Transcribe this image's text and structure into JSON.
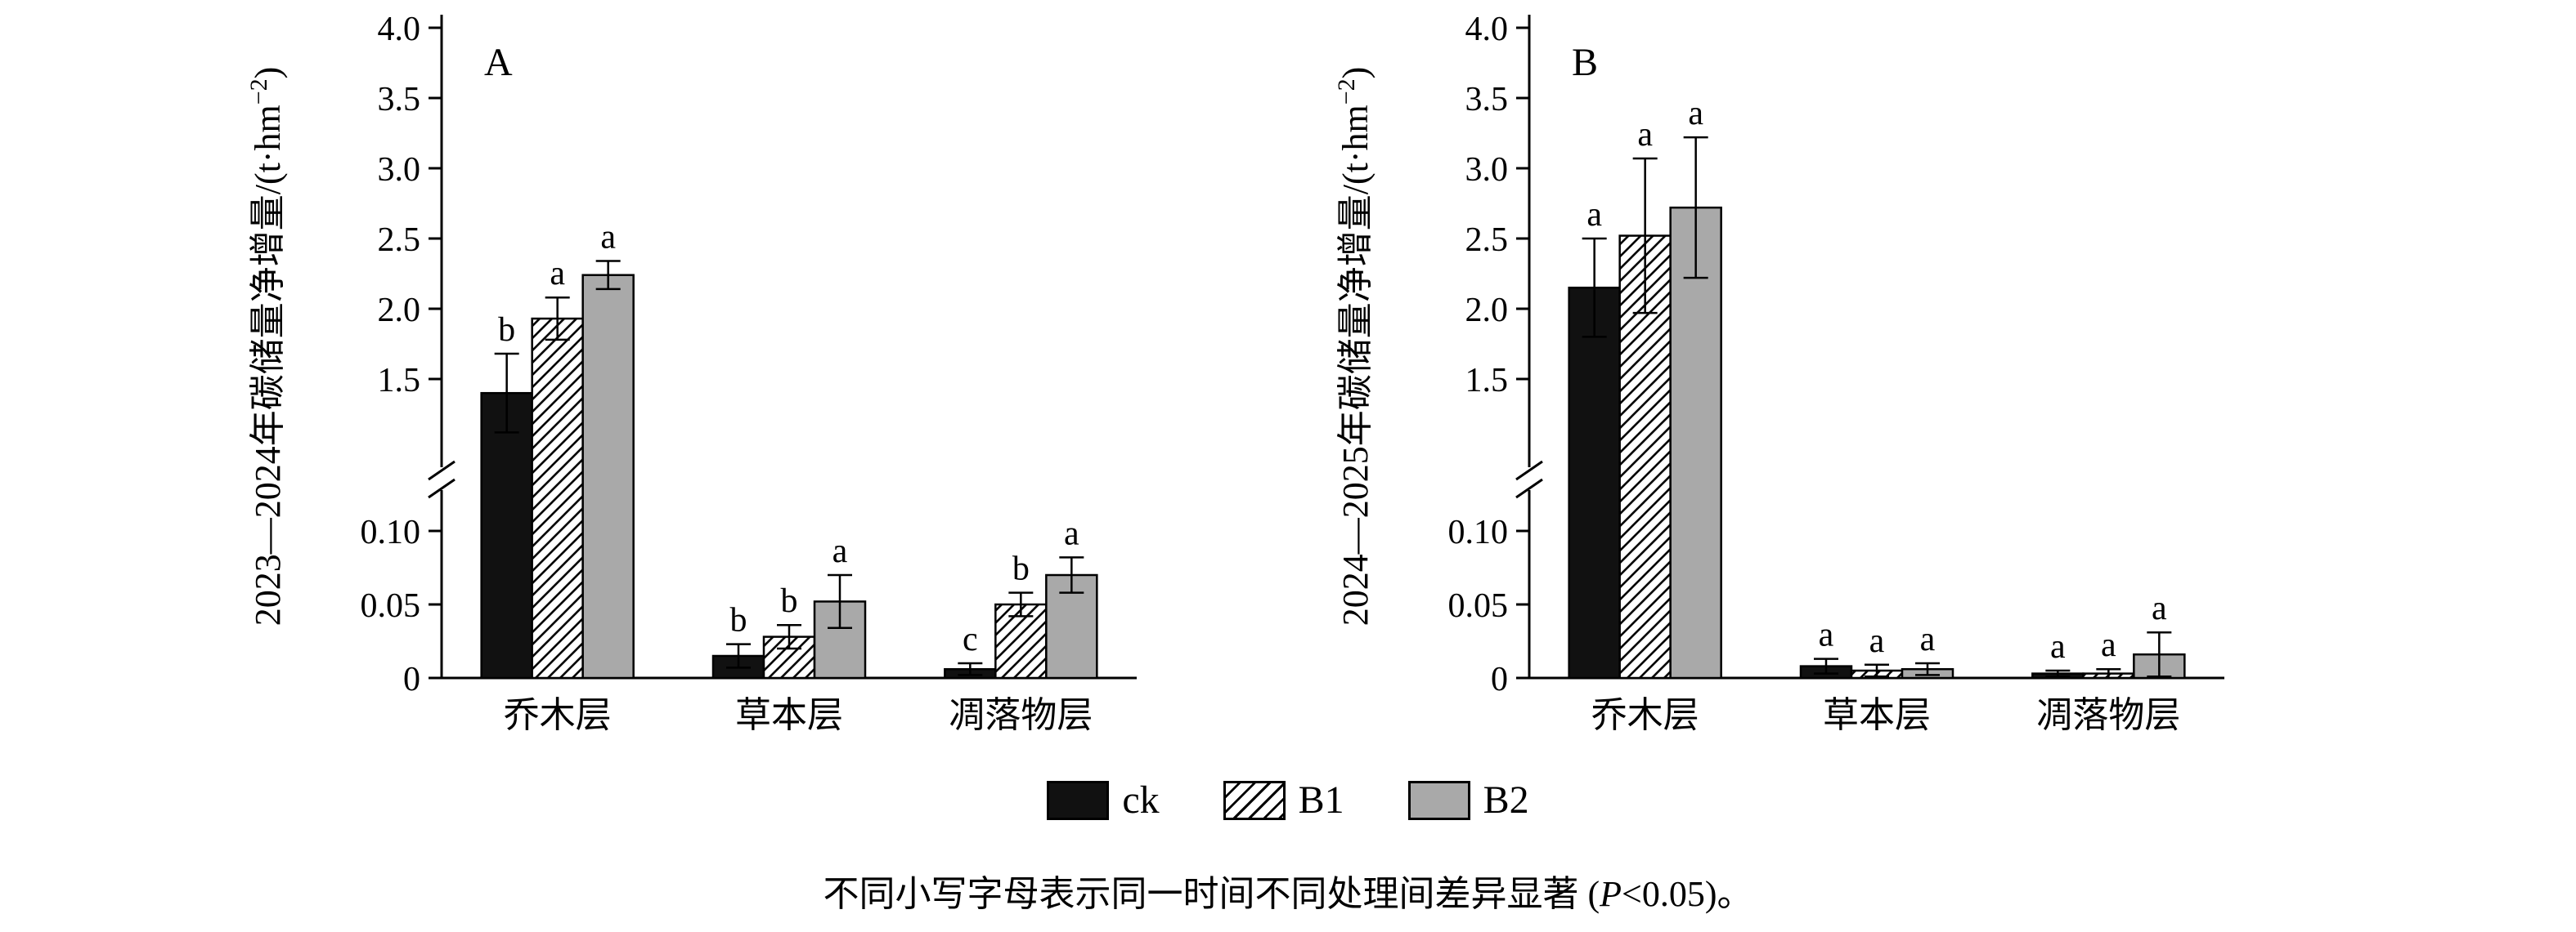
{
  "figure": {
    "background": "#ffffff",
    "footnote": {
      "prefix": "不同小写字母表示同一时间不同处理间差异显著 (",
      "p_symbol": "P",
      "suffix": "<0.05)。"
    },
    "legend": {
      "items": [
        {
          "label": "ck",
          "fill": "#111111",
          "pattern": "solid"
        },
        {
          "label": "B1",
          "fill": "#ffffff",
          "pattern": "hatch"
        },
        {
          "label": "B2",
          "fill": "#a9a9a9",
          "pattern": "solid"
        }
      ]
    }
  },
  "chart_data": [
    {
      "type": "bar",
      "panel": "A",
      "ylabel": "2023—2024年碳储量净增量/(t·hm⁻²)",
      "ylabel_main": "2023—2024年碳储量净增量/(t·hm",
      "ylabel_sup": "−2",
      "ylabel_end": ")",
      "categories": [
        "乔木层",
        "草本层",
        "凋落物层"
      ],
      "axis": {
        "broken": true,
        "lower_ticks": [
          "0",
          "0.05",
          "0.10"
        ],
        "upper_ticks": [
          "1.5",
          "2.0",
          "2.5",
          "3.0",
          "3.5",
          "4.0"
        ],
        "ylim_lower": [
          0,
          0.125
        ],
        "ylim_upper": [
          1.5,
          4.0
        ]
      },
      "series": [
        {
          "name": "ck",
          "values": [
            1.4,
            0.015,
            0.006
          ],
          "errors": [
            0.28,
            0.008,
            0.004
          ],
          "letters": [
            "b",
            "b",
            "c"
          ]
        },
        {
          "name": "B1",
          "values": [
            1.93,
            0.028,
            0.05
          ],
          "errors": [
            0.15,
            0.008,
            0.008
          ],
          "letters": [
            "a",
            "b",
            "b"
          ]
        },
        {
          "name": "B2",
          "values": [
            2.24,
            0.052,
            0.07
          ],
          "errors": [
            0.1,
            0.018,
            0.012
          ],
          "letters": [
            "a",
            "a",
            "a"
          ]
        }
      ]
    },
    {
      "type": "bar",
      "panel": "B",
      "ylabel": "2024—2025年碳储量净增量/(t·hm⁻²)",
      "ylabel_main": "2024—2025年碳储量净增量/(t·hm",
      "ylabel_sup": "−2",
      "ylabel_end": ")",
      "categories": [
        "乔木层",
        "草本层",
        "凋落物层"
      ],
      "axis": {
        "broken": true,
        "lower_ticks": [
          "0",
          "0.05",
          "0.10"
        ],
        "upper_ticks": [
          "1.5",
          "2.0",
          "2.5",
          "3.0",
          "3.5",
          "4.0"
        ],
        "ylim_lower": [
          0,
          0.125
        ],
        "ylim_upper": [
          1.5,
          4.0
        ]
      },
      "series": [
        {
          "name": "ck",
          "values": [
            2.15,
            0.008,
            0.003
          ],
          "errors": [
            0.35,
            0.005,
            0.002
          ],
          "letters": [
            "a",
            "a",
            "a"
          ]
        },
        {
          "name": "B1",
          "values": [
            2.52,
            0.005,
            0.003
          ],
          "errors": [
            0.55,
            0.004,
            0.003
          ],
          "letters": [
            "a",
            "a",
            "a"
          ]
        },
        {
          "name": "B2",
          "values": [
            2.72,
            0.006,
            0.016
          ],
          "errors": [
            0.5,
            0.004,
            0.015
          ],
          "letters": [
            "a",
            "a",
            "a"
          ]
        }
      ]
    }
  ]
}
